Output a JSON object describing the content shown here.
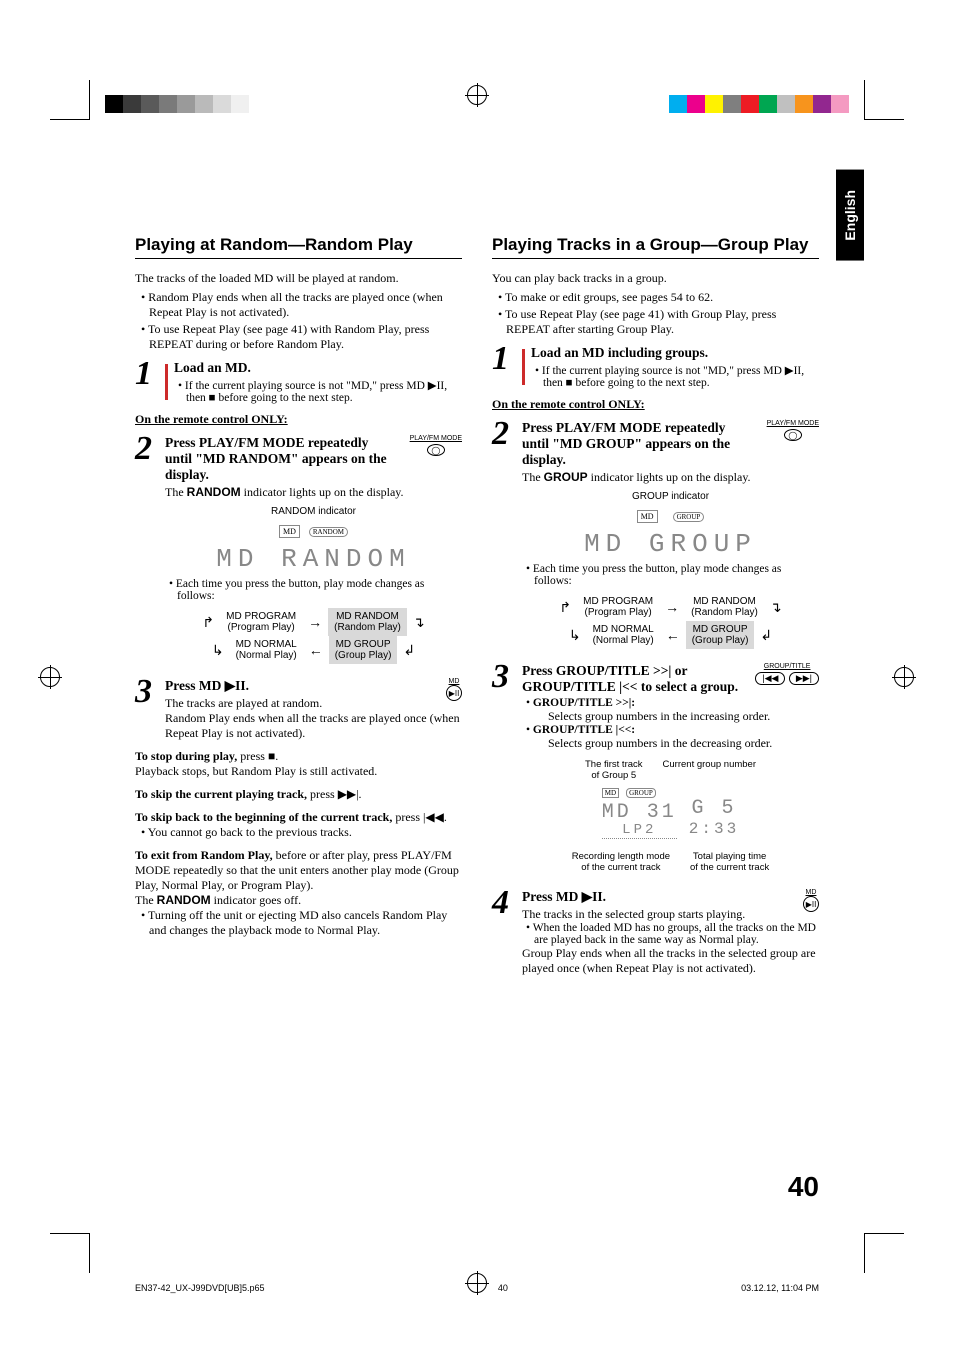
{
  "lang_tab": "English",
  "page_number": "40",
  "footer": {
    "file": "EN37-42_UX-J99DVD[UB]5.p65",
    "page": "40",
    "date": "03.12.12, 11:04 PM"
  },
  "color_bars": {
    "left": [
      "#000000",
      "#3a3a3a",
      "#5a5a5a",
      "#7a7a7a",
      "#9a9a9a",
      "#bababa",
      "#dadada",
      "#f0f0f0",
      "#ffffff",
      "#ffffff"
    ],
    "right": [
      "#00aeef",
      "#ec008c",
      "#fff200",
      "#7f7f7f",
      "#ed1c24",
      "#00a651",
      "#c0c0c0",
      "#f7941d",
      "#92278f",
      "#f49ac1"
    ]
  },
  "left": {
    "heading": "Playing at Random—Random Play",
    "intro": "The tracks of the loaded MD will be played at random.",
    "bullets": [
      "Random Play ends when all the tracks are played once (when Repeat Play is not activated).",
      "To use Repeat Play (see page 41) with Random Play, press REPEAT during or before Random Play."
    ],
    "step1": {
      "title": "Load an MD.",
      "note": "If the current playing source is not \"MD,\" press MD ▶II, then ■ before going to the next step."
    },
    "remote_only": "On the remote control ONLY:",
    "step2": {
      "title": "Press PLAY/FM MODE repeatedly until \"MD RANDOM\" appears on the display.",
      "desc_a": "The ",
      "desc_b": "RANDOM",
      "desc_c": " indicator lights up on the display.",
      "indicator_label": "RANDOM indicator",
      "seg": "MD  RANDOM",
      "cycle_note": "Each time you press the button, play mode changes as follows:",
      "icon_label": "PLAY/FM MODE"
    },
    "cycle": {
      "a": "MD PROGRAM",
      "a_sub": "(Program Play)",
      "b": "MD RANDOM",
      "b_sub": "(Random Play)",
      "c": "MD NORMAL",
      "c_sub": "(Normal Play)",
      "d": "MD GROUP",
      "d_sub": "(Group Play)"
    },
    "step3": {
      "title": "Press MD ▶II.",
      "desc": "The tracks are played at random.",
      "desc2": "Random Play ends when all the tracks are played once (when Repeat Play is not activated).",
      "icon_label": "MD"
    },
    "paras": {
      "p1a": "To stop during play,",
      "p1b": " press ■.",
      "p1c": "Playback stops, but Random Play is still activated.",
      "p2a": "To skip the current playing track,",
      "p2b": " press ▶▶|.",
      "p3a": "To skip back to the beginning of the current track,",
      "p3b": " press |◀◀.",
      "p3c": "You cannot go back to the previous tracks.",
      "p4a": "To exit from Random Play,",
      "p4b": " before or after play, press PLAY/FM MODE repeatedly so that the unit enters another play mode (Group Play, Normal Play, or Program Play).",
      "p4c_a": "The ",
      "p4c_b": "RANDOM",
      "p4c_c": " indicator goes off.",
      "p5": "Turning off the unit or ejecting MD also cancels Random Play and changes the playback mode to Normal Play."
    }
  },
  "right": {
    "heading": "Playing Tracks in a Group—Group Play",
    "intro": "You can play back tracks in a group.",
    "bullets": [
      "To make or edit groups, see pages 54 to 62.",
      "To use Repeat Play (see page 41) with Group Play, press REPEAT after starting Group Play."
    ],
    "step1": {
      "title": "Load an MD including groups.",
      "note": "If the current playing source is not \"MD,\" press MD ▶II, then ■ before going to the next step."
    },
    "remote_only": "On the remote control ONLY:",
    "step2": {
      "title": "Press PLAY/FM MODE repeatedly until \"MD GROUP\" appears on the display.",
      "desc_a": "The ",
      "desc_b": "GROUP",
      "desc_c": " indicator lights up on the display.",
      "indicator_label": "GROUP indicator",
      "seg": "MD  GROUP",
      "cycle_note": "Each time you press the button, play mode changes as follows:",
      "icon_label": "PLAY/FM MODE"
    },
    "step3": {
      "title": "Press GROUP/TITLE >>| or GROUP/TITLE |<< to select a group.",
      "b1": "GROUP/TITLE >>|:",
      "b1d": "Selects group numbers in the increasing order.",
      "b2": "GROUP/TITLE |<<:",
      "b2d": "Selects group numbers in the decreasing order.",
      "icon_label": "GROUP/TITLE",
      "fig": {
        "l1": "The first track",
        "l2": "of Group 5",
        "r1": "Current group number",
        "bl1": "Recording length mode",
        "bl2": "of the current track",
        "br1": "Total playing time",
        "br2": "of the current track",
        "seg_l1": "MD  31",
        "seg_l2": "LP2",
        "seg_r1": "G   5",
        "seg_r2": "2:33"
      }
    },
    "step4": {
      "title": "Press MD ▶II.",
      "desc": "The tracks in the selected group starts playing.",
      "bullet": "When the loaded MD has no groups, all the tracks on the MD are played back in the same way as Normal play.",
      "desc2": "Group Play ends when all the tracks in the selected group are played once (when Repeat Play is not activated).",
      "icon_label": "MD"
    }
  }
}
